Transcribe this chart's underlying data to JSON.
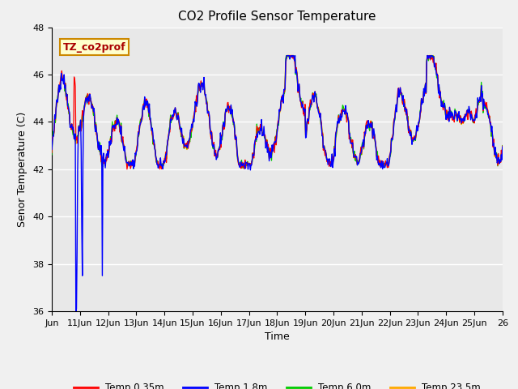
{
  "title": "CO2 Profile Sensor Temperature",
  "xlabel": "Time",
  "ylabel": "Senor Temperature (C)",
  "ylim": [
    36,
    48
  ],
  "bg_color": "#e8e8e8",
  "fig_color": "#f0f0f0",
  "legend_label": "TZ_co2prof",
  "series_labels": [
    "Temp 0.35m",
    "Temp 1.8m",
    "Temp 6.0m",
    "Temp 23.5m"
  ],
  "series_colors": [
    "#ff0000",
    "#0000ff",
    "#00cc00",
    "#ffaa00"
  ],
  "xtick_labels": [
    "Jun",
    "11Jun",
    "12Jun",
    "13Jun",
    "14Jun",
    "15Jun",
    "16Jun",
    "17Jun",
    "18Jun",
    "19Jun",
    "20Jun",
    "21Jun",
    "22Jun",
    "23Jun",
    "24Jun",
    "25Jun",
    "26"
  ],
  "ytick_values": [
    36,
    38,
    40,
    42,
    44,
    46,
    48
  ],
  "grid_color": "#ffffff",
  "title_fontsize": 11,
  "axis_fontsize": 9,
  "tick_fontsize": 8,
  "legend_label_color": "#aa0000",
  "legend_box_facecolor": "#ffffcc",
  "legend_box_edgecolor": "#cc8800"
}
